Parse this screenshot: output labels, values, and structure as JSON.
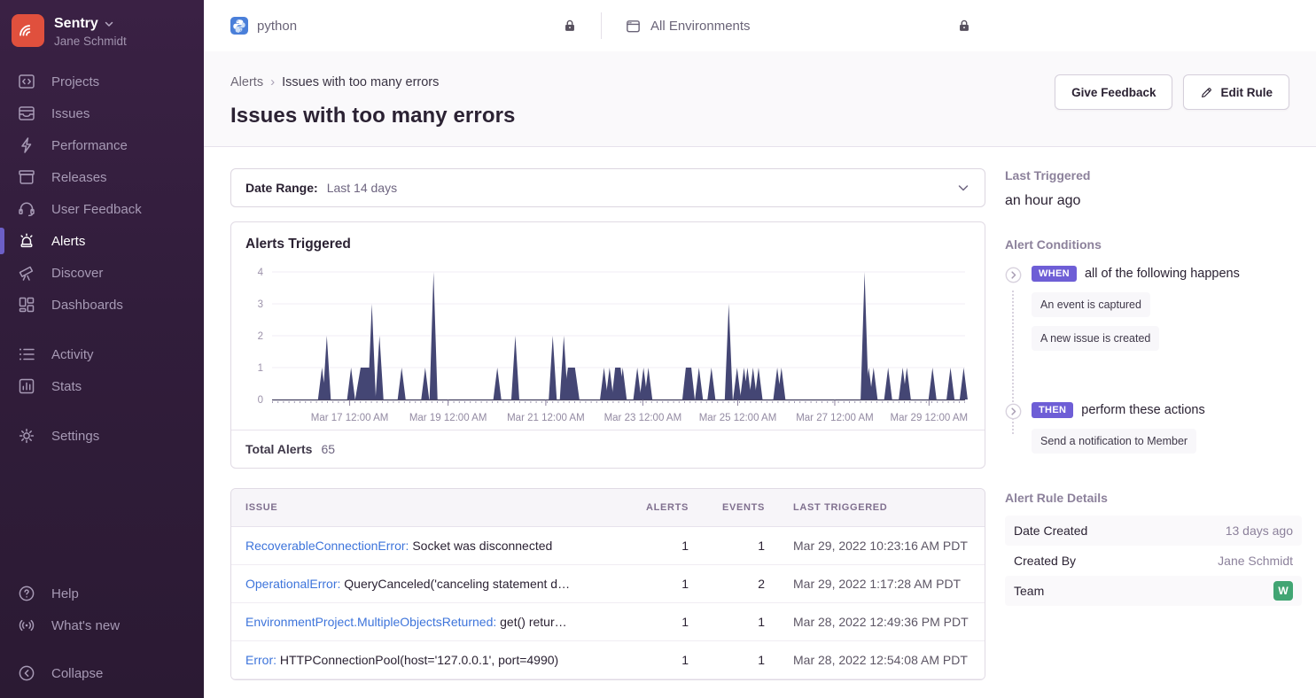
{
  "sidebar": {
    "brand": {
      "name": "Sentry",
      "user": "Jane Schmidt"
    },
    "items": [
      {
        "label": "Projects",
        "icon": "projects-icon",
        "active": false,
        "section": 1
      },
      {
        "label": "Issues",
        "icon": "issues-icon",
        "active": false,
        "section": 1
      },
      {
        "label": "Performance",
        "icon": "performance-icon",
        "active": false,
        "section": 1
      },
      {
        "label": "Releases",
        "icon": "releases-icon",
        "active": false,
        "section": 1
      },
      {
        "label": "User Feedback",
        "icon": "user-feedback-icon",
        "active": false,
        "section": 1
      },
      {
        "label": "Alerts",
        "icon": "alerts-icon",
        "active": true,
        "section": 1
      },
      {
        "label": "Discover",
        "icon": "discover-icon",
        "active": false,
        "section": 1
      },
      {
        "label": "Dashboards",
        "icon": "dashboards-icon",
        "active": false,
        "section": 1
      },
      {
        "label": "Activity",
        "icon": "activity-icon",
        "active": false,
        "section": 2
      },
      {
        "label": "Stats",
        "icon": "stats-icon",
        "active": false,
        "section": 2
      },
      {
        "label": "Settings",
        "icon": "settings-icon",
        "active": false,
        "section": 3
      }
    ],
    "footer_items": [
      {
        "label": "Help",
        "icon": "help-icon",
        "section": 1
      },
      {
        "label": "What's new",
        "icon": "whats-new-icon",
        "section": 1
      },
      {
        "label": "Collapse",
        "icon": "collapse-icon",
        "section": 2
      }
    ]
  },
  "topbar": {
    "project": {
      "label": "python"
    },
    "environment": {
      "label": "All Environments"
    }
  },
  "header": {
    "breadcrumb_link": "Alerts",
    "breadcrumb_current": "Issues with too many errors",
    "title": "Issues with too many errors",
    "give_feedback_label": "Give Feedback",
    "edit_rule_label": "Edit Rule"
  },
  "filters": {
    "date_range_label": "Date Range:",
    "date_range_value": "Last 14 days"
  },
  "chart_panel": {
    "title": "Alerts Triggered",
    "total_label": "Total Alerts",
    "total_value": "65"
  },
  "chart_data": {
    "type": "area",
    "title": "Alerts Triggered",
    "series_name": "Alerts Triggered",
    "total_alerts": 65,
    "ylim": [
      0,
      4
    ],
    "y_ticks": [
      0,
      1,
      2,
      3,
      4
    ],
    "grid": true,
    "x_ticks": [
      {
        "pos": 0.112,
        "label": "Mar 17 12:00 AM"
      },
      {
        "pos": 0.254,
        "label": "Mar 19 12:00 AM"
      },
      {
        "pos": 0.395,
        "label": "Mar 21 12:00 AM"
      },
      {
        "pos": 0.535,
        "label": "Mar 23 12:00 AM"
      },
      {
        "pos": 0.672,
        "label": "Mar 25 12:00 AM"
      },
      {
        "pos": 0.812,
        "label": "Mar 27 12:00 AM"
      },
      {
        "pos": 0.948,
        "label": "Mar 29 12:00 AM"
      }
    ],
    "spikes": [
      {
        "x": 0.072,
        "v": 1
      },
      {
        "x": 0.079,
        "v": 2
      },
      {
        "x": 0.114,
        "v": 1
      },
      {
        "x": 0.134,
        "v": 1,
        "w": 22
      },
      {
        "x": 0.144,
        "v": 3
      },
      {
        "x": 0.155,
        "v": 2
      },
      {
        "x": 0.187,
        "v": 1
      },
      {
        "x": 0.221,
        "v": 1
      },
      {
        "x": 0.233,
        "v": 4
      },
      {
        "x": 0.325,
        "v": 1
      },
      {
        "x": 0.351,
        "v": 2
      },
      {
        "x": 0.405,
        "v": 2
      },
      {
        "x": 0.421,
        "v": 2
      },
      {
        "x": 0.432,
        "v": 1,
        "w": 18
      },
      {
        "x": 0.479,
        "v": 1
      },
      {
        "x": 0.487,
        "v": 1
      },
      {
        "x": 0.499,
        "v": 1,
        "w": 14
      },
      {
        "x": 0.506,
        "v": 1
      },
      {
        "x": 0.527,
        "v": 1
      },
      {
        "x": 0.536,
        "v": 1
      },
      {
        "x": 0.543,
        "v": 1
      },
      {
        "x": 0.601,
        "v": 1,
        "w": 14
      },
      {
        "x": 0.616,
        "v": 1
      },
      {
        "x": 0.634,
        "v": 1
      },
      {
        "x": 0.659,
        "v": 3
      },
      {
        "x": 0.671,
        "v": 1
      },
      {
        "x": 0.681,
        "v": 1
      },
      {
        "x": 0.686,
        "v": 1
      },
      {
        "x": 0.694,
        "v": 1
      },
      {
        "x": 0.702,
        "v": 1
      },
      {
        "x": 0.729,
        "v": 1
      },
      {
        "x": 0.735,
        "v": 1
      },
      {
        "x": 0.855,
        "v": 4
      },
      {
        "x": 0.861,
        "v": 1
      },
      {
        "x": 0.868,
        "v": 1
      },
      {
        "x": 0.889,
        "v": 1
      },
      {
        "x": 0.91,
        "v": 1
      },
      {
        "x": 0.916,
        "v": 1
      },
      {
        "x": 0.953,
        "v": 1
      },
      {
        "x": 0.979,
        "v": 1
      },
      {
        "x": 0.998,
        "v": 1
      }
    ],
    "colors": {
      "spike": "#444674",
      "axis": "#43405f",
      "tick_label": "#938aa2",
      "gridline": "#f2eef5"
    }
  },
  "issues_table": {
    "columns": [
      "ISSUE",
      "ALERTS",
      "EVENTS",
      "LAST TRIGGERED"
    ],
    "rows": [
      {
        "issue_type": "RecoverableConnectionError:",
        "issue_desc": " Socket was disconnected",
        "alerts": "1",
        "events": "1",
        "last_triggered": "Mar 29, 2022 10:23:16 AM PDT"
      },
      {
        "issue_type": "OperationalError:",
        "issue_desc": " QueryCanceled('canceling statement d…",
        "alerts": "1",
        "events": "2",
        "last_triggered": "Mar 29, 2022 1:17:28 AM PDT"
      },
      {
        "issue_type": "EnvironmentProject.MultipleObjectsReturned:",
        "issue_desc": " get() retur…",
        "alerts": "1",
        "events": "1",
        "last_triggered": "Mar 28, 2022 12:49:36 PM PDT"
      },
      {
        "issue_type": "Error:",
        "issue_desc": " HTTPConnectionPool(host='127.0.0.1', port=4990)",
        "alerts": "1",
        "events": "1",
        "last_triggered": "Mar 28, 2022 12:54:08 AM PDT"
      }
    ]
  },
  "details": {
    "last_triggered": {
      "heading": "Last Triggered",
      "value": "an hour ago"
    },
    "conditions": {
      "heading": "Alert Conditions",
      "when": {
        "badge": "WHEN",
        "text": "all of the following happens",
        "items": [
          "An event is captured",
          "A new issue is created"
        ]
      },
      "then": {
        "badge": "THEN",
        "text": "perform these actions",
        "items": [
          "Send a notification to Member"
        ]
      }
    },
    "rule_details": {
      "heading": "Alert Rule Details",
      "rows": [
        {
          "label": "Date Created",
          "value": "13 days ago"
        },
        {
          "label": "Created By",
          "value": "Jane Schmidt"
        },
        {
          "label": "Team",
          "value": "W",
          "badge": true
        }
      ]
    }
  },
  "colors": {
    "accent_purple": "#6c5fc7",
    "badge_purple": "#6e5ed6",
    "team_green": "#41a573",
    "link_blue": "#3d74db",
    "logo_red": "#e0503d",
    "sidebar_bg": "#311d3b",
    "chart_spike": "#444674"
  }
}
